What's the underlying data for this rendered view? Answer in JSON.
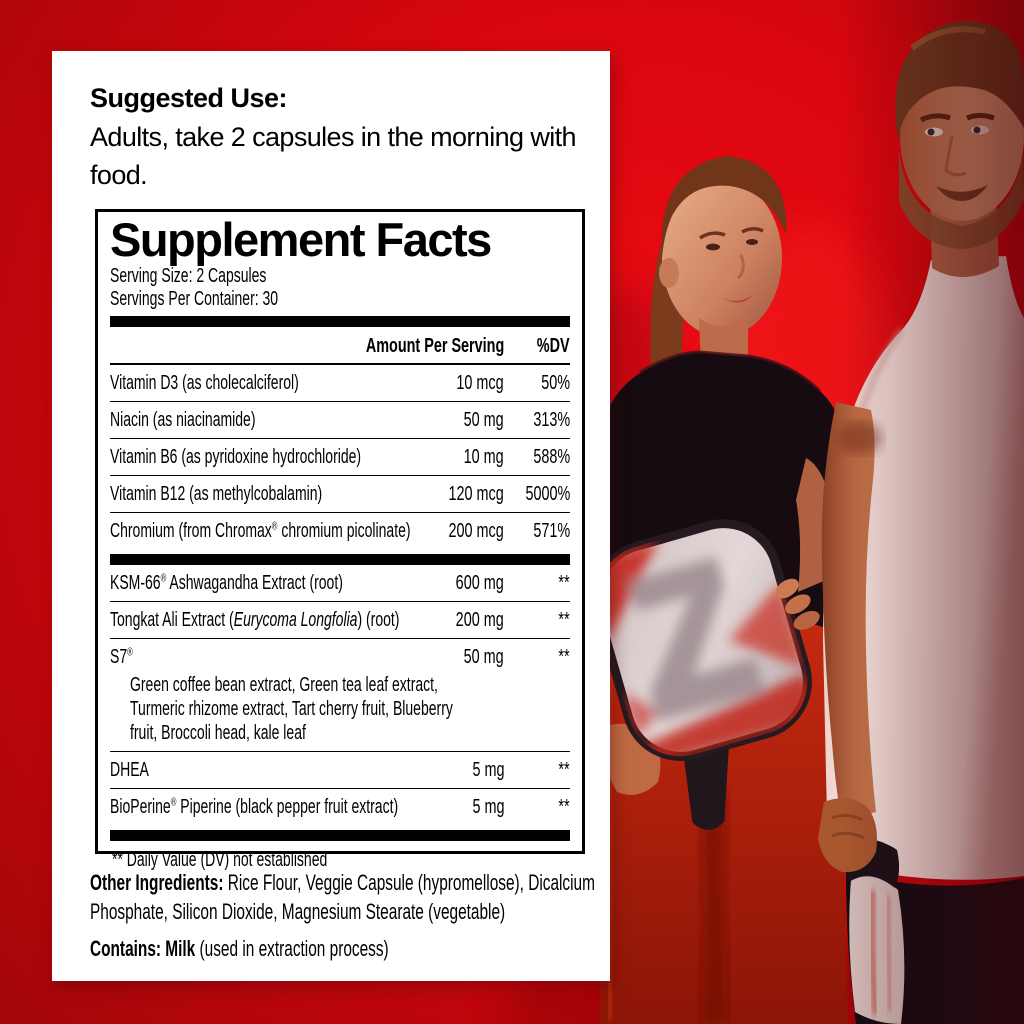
{
  "suggested_use": {
    "title": "Suggested Use:",
    "body": "Adults, take 2 capsules in the morning with food."
  },
  "supplement_facts": {
    "title": "Supplement Facts",
    "serving_size": "Serving Size: 2 Capsules",
    "servings_per_container": "Servings Per Container: 30",
    "columns": {
      "amount": "Amount Per Serving",
      "dv": "%DV"
    },
    "sections": [
      {
        "rows": [
          {
            "name": "Vitamin D3 (as cholecalciferol)",
            "amount": "10 mcg",
            "dv": "50%"
          },
          {
            "name": "Niacin (as niacinamide)",
            "amount": "50 mg",
            "dv": "313%"
          },
          {
            "name": "Vitamin B6 (as pyridoxine hydrochloride)",
            "amount": "10 mg",
            "dv": "588%"
          },
          {
            "name": "Vitamin B12 (as methylcobalamin)",
            "amount": "120 mcg",
            "dv": "5000%"
          },
          {
            "name": "Chromium (from Chromax® chromium picolinate)",
            "amount": "200 mcg",
            "dv": "571%"
          }
        ]
      },
      {
        "rows": [
          {
            "name": "KSM-66® Ashwagandha Extract (root)",
            "amount": "600 mg",
            "dv": "**"
          },
          {
            "name_segments": [
              {
                "t": "Tongkat Ali Extract ("
              },
              {
                "t": "Eurycoma Longfolia",
                "i": true
              },
              {
                "t": ") (root)"
              }
            ],
            "amount": "200 mg",
            "dv": "**"
          },
          {
            "name": "S7®",
            "amount": "50 mg",
            "dv": "**",
            "sub": "Green coffee bean extract, Green tea leaf extract, Turmeric rhizome extract, Tart cherry fruit, Blueberry fruit, Broccoli head, kale leaf"
          },
          {
            "name": "DHEA",
            "amount": "5 mg",
            "dv": "**"
          },
          {
            "name": "BioPerine® Piperine (black pepper fruit extract)",
            "amount": "5 mg",
            "dv": "**"
          }
        ]
      }
    ],
    "footnote": "** Daily Value (DV) not established"
  },
  "other_ingredients": {
    "label": "Other Ingredients:",
    "text": " Rice Flour, Veggie Capsule (hypromellose), Dicalcium Phosphate, Silicon Dioxide, Magnesium Stearate (vegetable)"
  },
  "contains": {
    "label": "Contains: Milk",
    "text": " (used in extraction process)"
  },
  "photo": {
    "scene": "man and woman in activewear holding pickleball paddles against red backdrop",
    "left_figure": "woman with ponytail, black t-shirt, red leggings, holding white-faced paddle",
    "right_figure": "bearded man, white sleeveless shirt, black shorts, holding paddle at side",
    "colors": {
      "backdrop_red": "#d9060e",
      "panel_white": "#ffffff",
      "label_text": "#000000"
    }
  }
}
